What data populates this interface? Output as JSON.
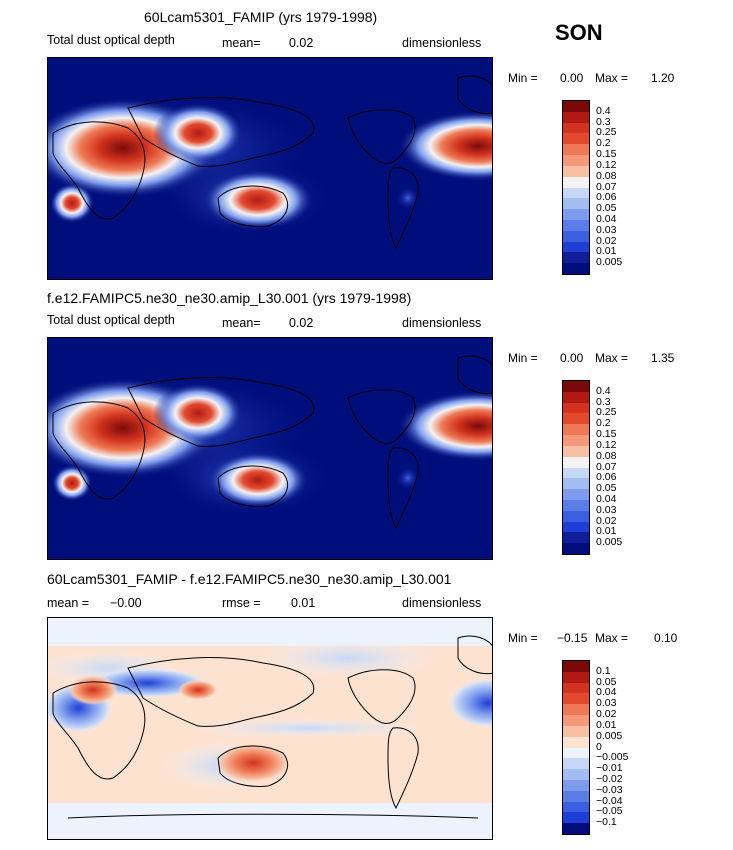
{
  "season": "SON",
  "panels": [
    {
      "title": "60Lcam5301_FAMIP (yrs 1979-1998)",
      "left_label": "Total dust optical depth",
      "mean_label": "mean=",
      "mean_value": "0.02",
      "units": "dimensionless",
      "min_label": "Min =",
      "min_value": "0.00",
      "max_label": "Max =",
      "max_value": "1.20",
      "levels": [
        "0.4",
        "0.3",
        "0.25",
        "0.2",
        "0.15",
        "0.12",
        "0.08",
        "0.07",
        "0.06",
        "0.05",
        "0.04",
        "0.03",
        "0.02",
        "0.01",
        "0.005"
      ]
    },
    {
      "title": "f.e12.FAMIPC5.ne30_ne30.amip_L30.001 (yrs 1979-1998)",
      "left_label": "Total dust optical depth",
      "mean_label": "mean=",
      "mean_value": "0.02",
      "units": "dimensionless",
      "min_label": "Min =",
      "min_value": "0.00",
      "max_label": "Max =",
      "max_value": "1.35",
      "levels": [
        "0.4",
        "0.3",
        "0.25",
        "0.2",
        "0.15",
        "0.12",
        "0.08",
        "0.07",
        "0.06",
        "0.05",
        "0.04",
        "0.03",
        "0.02",
        "0.01",
        "0.005"
      ]
    },
    {
      "title": "60Lcam5301_FAMIP - f.e12.FAMIPC5.ne30_ne30.amip_L30.001",
      "left_label": "mean =",
      "mean_label": "",
      "mean_value": "−0.00",
      "rmse_label": "rmse =",
      "rmse_value": "0.01",
      "units": "dimensionless",
      "min_label": "Min =",
      "min_value": "−0.15",
      "max_label": "Max =",
      "max_value": "0.10",
      "levels": [
        "0.1",
        "0.05",
        "0.04",
        "0.03",
        "0.02",
        "0.01",
        "0.005",
        "0",
        "−0.005",
        "−0.01",
        "−0.02",
        "−0.03",
        "−0.04",
        "−0.05",
        "−0.1"
      ]
    }
  ],
  "colors": {
    "abs_scale": [
      "#7a0a0a",
      "#b01a12",
      "#d2321f",
      "#e24a2e",
      "#ee7a55",
      "#f49a78",
      "#f8bfa3",
      "#f4f2f2",
      "#c6d8f6",
      "#a3bdf2",
      "#7d9cee",
      "#5b7de8",
      "#3c5fe0",
      "#1f3fd4",
      "#0f1f9a",
      "#000e7c"
    ],
    "diff_scale": [
      "#7a0a0a",
      "#b01a12",
      "#d2321f",
      "#e24a2e",
      "#ee7a55",
      "#f49a78",
      "#f8bfa3",
      "#fde2d0",
      "#ecf3fd",
      "#c6d8f6",
      "#a3bdf2",
      "#7d9cee",
      "#5b7de8",
      "#3c5fe0",
      "#1f3fd4",
      "#000e7c"
    ]
  }
}
